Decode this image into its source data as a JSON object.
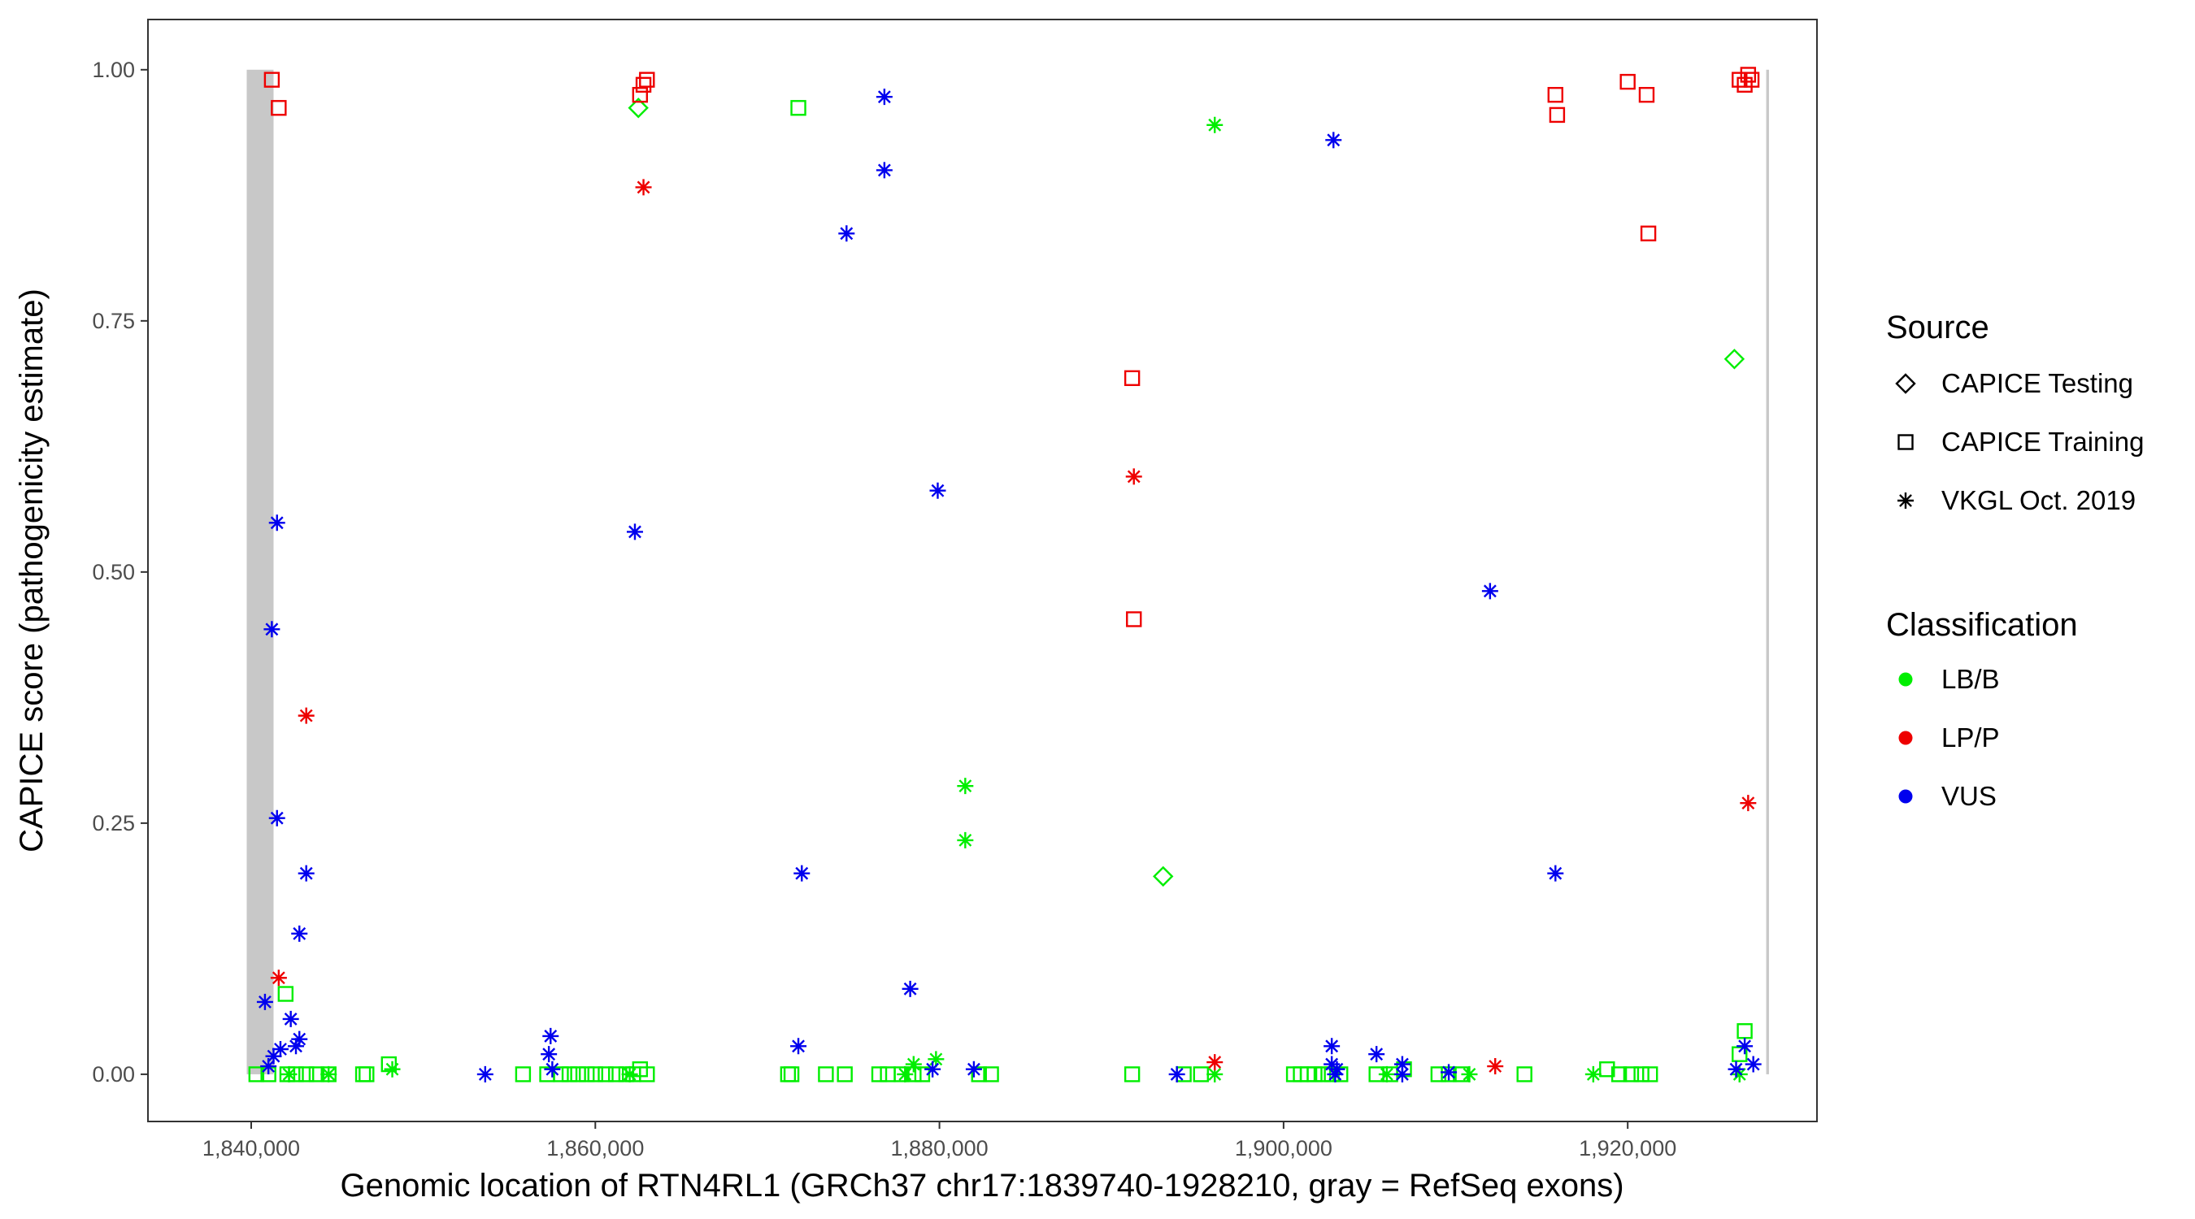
{
  "chart_data": {
    "type": "scatter",
    "title": "",
    "xlabel": "Genomic location of RTN4RL1 (GRCh37 chr17:1839740-1928210, gray = RefSeq exons)",
    "ylabel": "CAPICE score (pathogenicity estimate)",
    "xlim": [
      1834000,
      1931000
    ],
    "ylim": [
      -0.047,
      1.05
    ],
    "x_ticks": [
      1840000,
      1860000,
      1880000,
      1900000,
      1920000
    ],
    "x_tick_labels": [
      "1,840,000",
      "1,860,000",
      "1,880,000",
      "1,900,000",
      "1,920,000"
    ],
    "y_ticks": [
      0,
      0.25,
      0.5,
      0.75,
      1
    ],
    "y_tick_labels": [
      "0.00",
      "0.25",
      "0.50",
      "0.75",
      "1.00"
    ],
    "grid": false,
    "exons": [
      {
        "start": 1839740,
        "end": 1841300
      },
      {
        "start": 1928050,
        "end": 1928210
      }
    ],
    "legend_position": "right",
    "legend": {
      "source_title": "Source",
      "source_items": [
        {
          "label": "CAPICE Testing",
          "shape": "diamond"
        },
        {
          "label": "CAPICE Training",
          "shape": "square"
        },
        {
          "label": "VKGL Oct. 2019",
          "shape": "asterisk"
        }
      ],
      "class_title": "Classification",
      "class_items": [
        {
          "label": "LB/B",
          "color": "#00ee00"
        },
        {
          "label": "LP/P",
          "color": "#ee0000"
        },
        {
          "label": "VUS",
          "color": "#0000ee"
        }
      ]
    },
    "series": [
      {
        "source": "CAPICE Testing",
        "classification": "LB/B",
        "points": [
          [
            1862500,
            0.962
          ],
          [
            1893000,
            0.197
          ],
          [
            1926200,
            0.712
          ]
        ]
      },
      {
        "source": "CAPICE Training",
        "classification": "LP/P",
        "points": [
          [
            1841200,
            0.99
          ],
          [
            1841600,
            0.962
          ],
          [
            1862600,
            0.975
          ],
          [
            1862800,
            0.985
          ],
          [
            1863000,
            0.99
          ],
          [
            1891200,
            0.693
          ],
          [
            1891300,
            0.453
          ],
          [
            1915800,
            0.975
          ],
          [
            1915900,
            0.955
          ],
          [
            1920000,
            0.988
          ],
          [
            1921100,
            0.975
          ],
          [
            1921200,
            0.837
          ],
          [
            1926500,
            0.99
          ],
          [
            1926800,
            0.985
          ],
          [
            1927000,
            0.995
          ],
          [
            1927200,
            0.99
          ]
        ]
      },
      {
        "source": "CAPICE Training",
        "classification": "LB/B",
        "points": [
          [
            1871800,
            0.962
          ],
          [
            1842000,
            0.08
          ],
          [
            1926800,
            0.043
          ],
          [
            1926500,
            0.02
          ],
          [
            1848000,
            0.01
          ],
          [
            1840300,
            0.0
          ],
          [
            1841000,
            0.0
          ],
          [
            1842100,
            0.0
          ],
          [
            1842600,
            0.0
          ],
          [
            1843200,
            0.0
          ],
          [
            1843800,
            0.0
          ],
          [
            1844500,
            0.0
          ],
          [
            1846500,
            0.0
          ],
          [
            1846700,
            0.0
          ],
          [
            1855800,
            0.0
          ],
          [
            1857200,
            0.0
          ],
          [
            1858000,
            0.0
          ],
          [
            1858500,
            0.0
          ],
          [
            1859000,
            0.0
          ],
          [
            1859500,
            0.0
          ],
          [
            1860000,
            0.0
          ],
          [
            1860600,
            0.0
          ],
          [
            1861200,
            0.0
          ],
          [
            1861800,
            0.0
          ],
          [
            1862200,
            0.0
          ],
          [
            1862600,
            0.005
          ],
          [
            1863000,
            0.0
          ],
          [
            1871200,
            0.0
          ],
          [
            1871400,
            0.0
          ],
          [
            1873400,
            0.0
          ],
          [
            1874500,
            0.0
          ],
          [
            1876500,
            0.0
          ],
          [
            1877000,
            0.0
          ],
          [
            1877800,
            0.0
          ],
          [
            1878500,
            0.0
          ],
          [
            1879000,
            0.0
          ],
          [
            1882300,
            0.0
          ],
          [
            1883000,
            0.0
          ],
          [
            1891200,
            0.0
          ],
          [
            1894200,
            0.0
          ],
          [
            1895200,
            0.0
          ],
          [
            1900600,
            0.0
          ],
          [
            1901000,
            0.0
          ],
          [
            1901400,
            0.0
          ],
          [
            1901800,
            0.0
          ],
          [
            1902300,
            0.0
          ],
          [
            1902800,
            0.0
          ],
          [
            1903300,
            0.0
          ],
          [
            1905400,
            0.0
          ],
          [
            1906200,
            0.0
          ],
          [
            1907000,
            0.005
          ],
          [
            1909000,
            0.0
          ],
          [
            1909600,
            0.0
          ],
          [
            1910300,
            0.0
          ],
          [
            1914000,
            0.0
          ],
          [
            1918800,
            0.005
          ],
          [
            1919500,
            0.0
          ],
          [
            1920200,
            0.0
          ],
          [
            1920800,
            0.0
          ],
          [
            1921300,
            0.0
          ]
        ]
      },
      {
        "source": "VKGL Oct. 2019",
        "classification": "LB/B",
        "points": [
          [
            1896000,
            0.945
          ],
          [
            1881500,
            0.287
          ],
          [
            1881500,
            0.233
          ],
          [
            1879800,
            0.015
          ],
          [
            1878500,
            0.01
          ],
          [
            1878000,
            0.0
          ],
          [
            1848200,
            0.005
          ],
          [
            1844500,
            0.0
          ],
          [
            1842200,
            0.0
          ],
          [
            1862000,
            0.0
          ],
          [
            1896000,
            0.0
          ],
          [
            1906000,
            0.0
          ],
          [
            1910800,
            0.0
          ],
          [
            1918000,
            0.0
          ],
          [
            1926500,
            0.0
          ]
        ]
      },
      {
        "source": "VKGL Oct. 2019",
        "classification": "LP/P",
        "points": [
          [
            1862800,
            0.883
          ],
          [
            1891300,
            0.595
          ],
          [
            1843200,
            0.357
          ],
          [
            1841600,
            0.096
          ],
          [
            1927000,
            0.27
          ],
          [
            1896000,
            0.012
          ],
          [
            1912300,
            0.008
          ]
        ]
      },
      {
        "source": "VKGL Oct. 2019",
        "classification": "VUS",
        "points": [
          [
            1876800,
            0.973
          ],
          [
            1902900,
            0.93
          ],
          [
            1876800,
            0.9
          ],
          [
            1874600,
            0.837
          ],
          [
            1879900,
            0.581
          ],
          [
            1841500,
            0.549
          ],
          [
            1862300,
            0.54
          ],
          [
            1912000,
            0.481
          ],
          [
            1841200,
            0.443
          ],
          [
            1841500,
            0.255
          ],
          [
            1843200,
            0.2
          ],
          [
            1872000,
            0.2
          ],
          [
            1915800,
            0.2
          ],
          [
            1842800,
            0.14
          ],
          [
            1878300,
            0.085
          ],
          [
            1840800,
            0.072
          ],
          [
            1842300,
            0.055
          ],
          [
            1842800,
            0.035
          ],
          [
            1842600,
            0.028
          ],
          [
            1841700,
            0.025
          ],
          [
            1841300,
            0.018
          ],
          [
            1871800,
            0.028
          ],
          [
            1857400,
            0.038
          ],
          [
            1857300,
            0.02
          ],
          [
            1857500,
            0.005
          ],
          [
            1841000,
            0.008
          ],
          [
            1853600,
            0.0
          ],
          [
            1879600,
            0.005
          ],
          [
            1882000,
            0.005
          ],
          [
            1893800,
            0.0
          ],
          [
            1902800,
            0.028
          ],
          [
            1902800,
            0.01
          ],
          [
            1903100,
            0.005
          ],
          [
            1903000,
            0.0
          ],
          [
            1905400,
            0.02
          ],
          [
            1906900,
            0.01
          ],
          [
            1906900,
            0.0
          ],
          [
            1909600,
            0.002
          ],
          [
            1926800,
            0.028
          ],
          [
            1926300,
            0.005
          ],
          [
            1927300,
            0.01
          ]
        ]
      }
    ]
  }
}
